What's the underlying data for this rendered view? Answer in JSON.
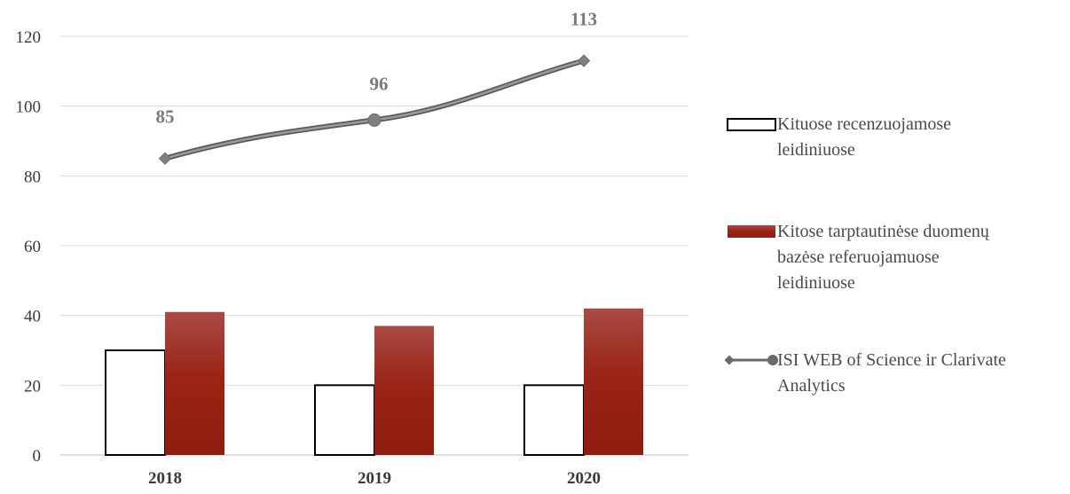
{
  "chart_data": {
    "type": "bar",
    "categories": [
      "2018",
      "2019",
      "2020"
    ],
    "series": [
      {
        "name": "Kituose recenzuojamose leidiniuose",
        "kind": "bar",
        "values": [
          30,
          20,
          20
        ],
        "color": "#ffffff",
        "stroke": "#000000"
      },
      {
        "name": "Kitose tarptautinėse duomenų bazėse referuojamuose leidiniuose",
        "kind": "bar",
        "values": [
          41,
          37,
          42
        ],
        "color": "#9c1f12"
      },
      {
        "name": "ISI WEB of Science ir Clarivate Analytics",
        "kind": "line",
        "values": [
          85,
          96,
          113
        ],
        "data_labels": [
          "85",
          "96",
          "113"
        ],
        "color": "#7f7f7f"
      }
    ],
    "ylim": [
      0,
      120
    ],
    "yticks": [
      "0",
      "20",
      "40",
      "60",
      "80",
      "100",
      "120"
    ],
    "grid": true,
    "legend_position": "right",
    "title": "",
    "xlabel": "",
    "ylabel": ""
  }
}
